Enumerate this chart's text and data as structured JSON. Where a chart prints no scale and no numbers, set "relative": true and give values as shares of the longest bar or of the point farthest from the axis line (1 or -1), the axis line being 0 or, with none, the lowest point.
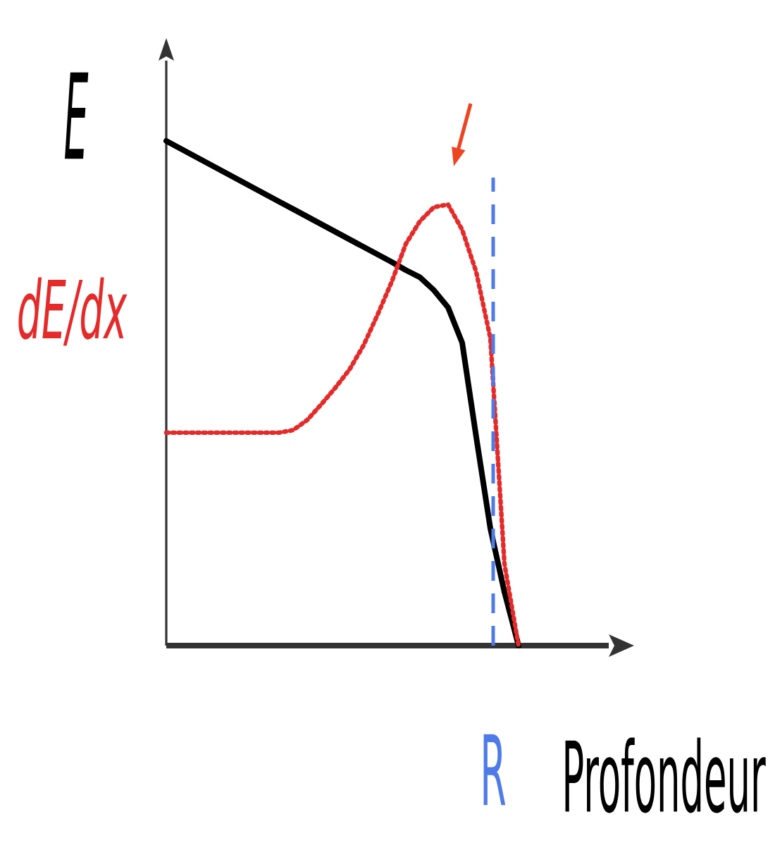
{
  "chart_data": {
    "type": "line",
    "relative": true,
    "tick_labels": false,
    "xlabel": "Profondeur",
    "annotations": [
      "R"
    ],
    "categories": [
      null,
      null,
      null,
      null,
      null,
      null,
      null,
      null,
      null,
      null,
      null,
      null,
      null,
      null,
      null,
      null,
      null,
      null,
      null,
      null,
      null,
      null,
      null,
      null,
      null,
      null
    ],
    "series": [
      {
        "name": "E",
        "color": "#000000",
        "line_style": "solid",
        "values": [
          1.0,
          0.985,
          0.97,
          0.955,
          0.94,
          0.925,
          0.91,
          0.895,
          0.88,
          0.865,
          0.85,
          0.835,
          0.82,
          0.805,
          0.79,
          0.775,
          0.76,
          0.744,
          0.73,
          0.704,
          0.67,
          0.6,
          0.413,
          0.232,
          0.106,
          0
        ]
      },
      {
        "name": "dE/dx",
        "color": "#e52a2a",
        "line_style": "dotted",
        "values": [
          0.422,
          0.422,
          0.422,
          0.422,
          0.422,
          0.422,
          0.422,
          0.422,
          0.422,
          0.427,
          0.447,
          0.478,
          0.511,
          0.547,
          0.595,
          0.656,
          0.721,
          0.796,
          0.841,
          0.869,
          0.874,
          0.824,
          0.74,
          0.609,
          0.162,
          0
        ]
      }
    ]
  }
}
